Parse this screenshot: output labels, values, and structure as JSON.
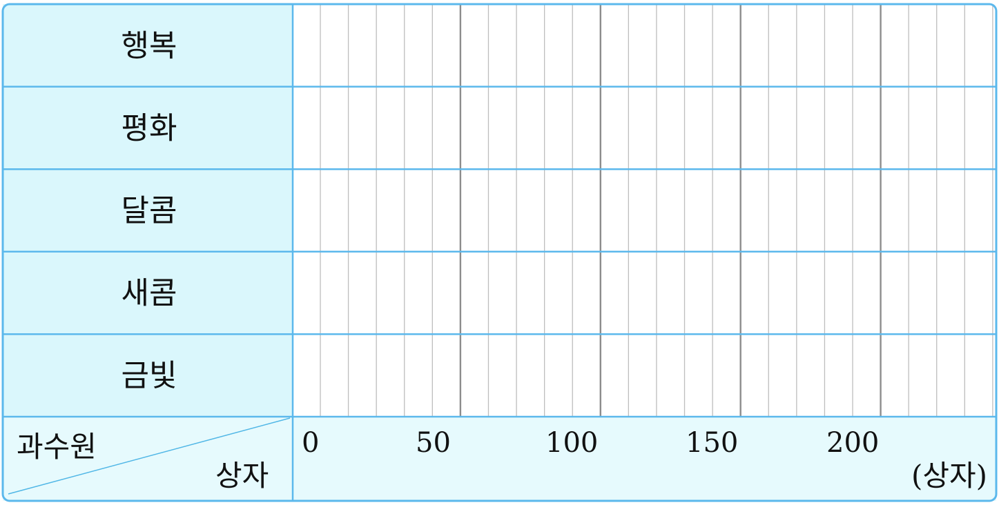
{
  "chart_data": {
    "type": "bar",
    "title": "",
    "corner_header": {
      "row_label": "과수원",
      "col_label": "상자"
    },
    "categories": [
      "행복",
      "평화",
      "달콤",
      "새콤",
      "금빛"
    ],
    "values": [
      null,
      null,
      null,
      null,
      null
    ],
    "x_axis": {
      "unit": "(상자)",
      "min": 0,
      "max": 240,
      "minor_step": 10,
      "major_step": 50,
      "tick_labels": [
        "0",
        "50",
        "100",
        "150",
        "200"
      ],
      "tick_values": [
        0,
        50,
        100,
        150,
        200
      ]
    },
    "grid": true,
    "colors": {
      "header_fill": "#daf7fc",
      "footer_fill": "#e6fafd",
      "border": "#5bb8ec",
      "minor_grid": "#bdbdbd",
      "major_grid": "#8c8c8c",
      "diagonal": "#4fb6e6"
    }
  }
}
